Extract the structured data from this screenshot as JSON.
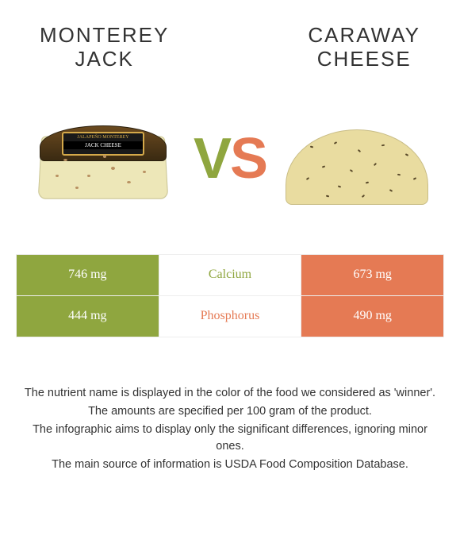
{
  "left": {
    "title_line1": "MONTEREY",
    "title_line2": "JACK",
    "color": "#8fa63f",
    "cheese_body_color": "#ede7b8",
    "rind_label_top": "JALAPEÑO MONTEREY",
    "rind_label_main": "JACK CHEESE"
  },
  "right": {
    "title_line1": "CARAWAY",
    "title_line2": "CHEESE",
    "color": "#e57a54",
    "cheese_body_color": "#e9dca0"
  },
  "vs": {
    "v": "V",
    "s": "S"
  },
  "rows": [
    {
      "nutrient": "Calcium",
      "left_val": "746 mg",
      "right_val": "673 mg",
      "winner": "left"
    },
    {
      "nutrient": "Phosphorus",
      "left_val": "444 mg",
      "right_val": "490 mg",
      "winner": "right"
    }
  ],
  "row_colors": {
    "left_bar": "#8fa63f",
    "right_bar": "#e57a54",
    "row_border": "#eeeeee"
  },
  "footnotes": [
    "The nutrient name is displayed in the color of the food we considered as 'winner'.",
    "The amounts are specified per 100 gram of the product.",
    "The infographic aims to display only the significant differences, ignoring minor ones.",
    "The main source of information is USDA Food Composition Database."
  ],
  "specks_left": [
    {
      "l": 40,
      "t": 60,
      "w": 5,
      "h": 3
    },
    {
      "l": 70,
      "t": 80,
      "w": 4,
      "h": 3
    },
    {
      "l": 100,
      "t": 70,
      "w": 5,
      "h": 4
    },
    {
      "l": 55,
      "t": 95,
      "w": 4,
      "h": 3
    },
    {
      "l": 120,
      "t": 88,
      "w": 5,
      "h": 3
    },
    {
      "l": 90,
      "t": 55,
      "w": 4,
      "h": 4
    },
    {
      "l": 140,
      "t": 75,
      "w": 4,
      "h": 3
    },
    {
      "l": 30,
      "t": 80,
      "w": 4,
      "h": 3
    }
  ],
  "seeds_right": [
    {
      "l": 30,
      "t": 20,
      "r": 15
    },
    {
      "l": 60,
      "t": 15,
      "r": -30
    },
    {
      "l": 90,
      "t": 25,
      "r": 40
    },
    {
      "l": 120,
      "t": 18,
      "r": -10
    },
    {
      "l": 150,
      "t": 30,
      "r": 25
    },
    {
      "l": 45,
      "t": 45,
      "r": -20
    },
    {
      "l": 80,
      "t": 50,
      "r": 35
    },
    {
      "l": 110,
      "t": 42,
      "r": -45
    },
    {
      "l": 140,
      "t": 55,
      "r": 10
    },
    {
      "l": 25,
      "t": 60,
      "r": -35
    },
    {
      "l": 65,
      "t": 70,
      "r": 20
    },
    {
      "l": 100,
      "t": 65,
      "r": -15
    },
    {
      "l": 130,
      "t": 75,
      "r": 30
    },
    {
      "l": 160,
      "t": 60,
      "r": -25
    },
    {
      "l": 50,
      "t": 82,
      "r": 15
    },
    {
      "l": 95,
      "t": 82,
      "r": -40
    }
  ]
}
